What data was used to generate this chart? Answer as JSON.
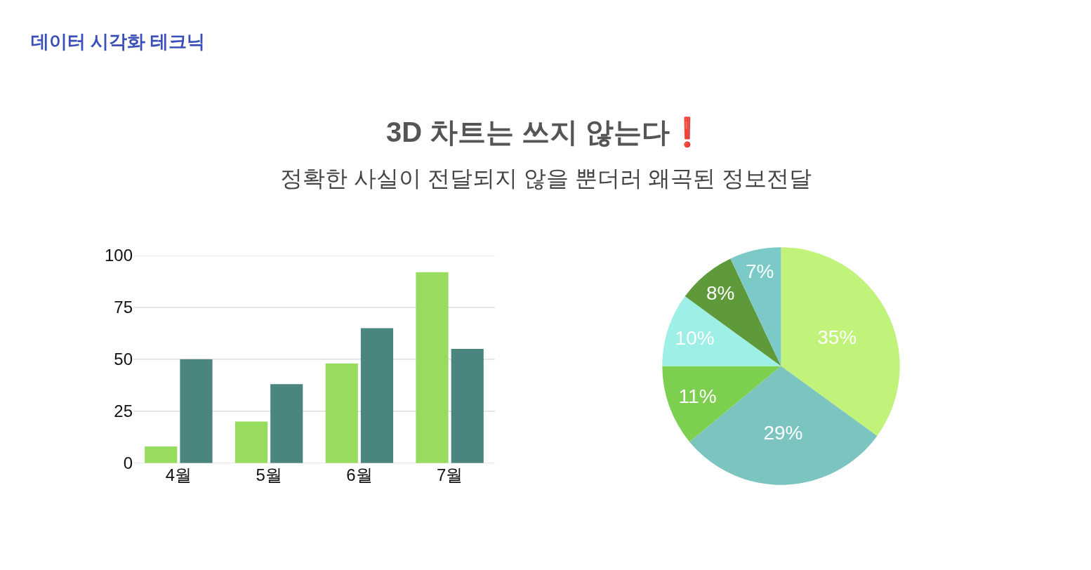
{
  "chart_data": [
    {
      "type": "bar",
      "title": "3D 차트는 쓰지 않는다❗",
      "subtitle": "정확한 사실이 전달되지 않을 뿐더러 왜곡된 정보전달",
      "annotations": [
        "데이터 시각화 테크닉"
      ],
      "categories": [
        "4월",
        "5월",
        "6월",
        "7월"
      ],
      "series": [
        {
          "color": "#97dc5e",
          "values": [
            8,
            20,
            48,
            92
          ]
        },
        {
          "color": "#4b8580",
          "values": [
            50,
            38,
            65,
            55
          ]
        }
      ],
      "ylim": [
        0,
        100
      ],
      "yticks": [
        0,
        25,
        50,
        75,
        100
      ],
      "grid": "y"
    },
    {
      "type": "pie",
      "categories": [
        null,
        null,
        null,
        null,
        null,
        null
      ],
      "values": [
        35,
        29,
        11,
        10,
        8,
        7
      ],
      "colors": [
        "#c1f27a",
        "#7cc4c0",
        "#7dcf50",
        "#9eefe6",
        "#5f9a3a",
        "#7ccac8"
      ],
      "value_labels": [
        "35%",
        "29%",
        "11%",
        "10%",
        "8%",
        "7%"
      ]
    }
  ]
}
